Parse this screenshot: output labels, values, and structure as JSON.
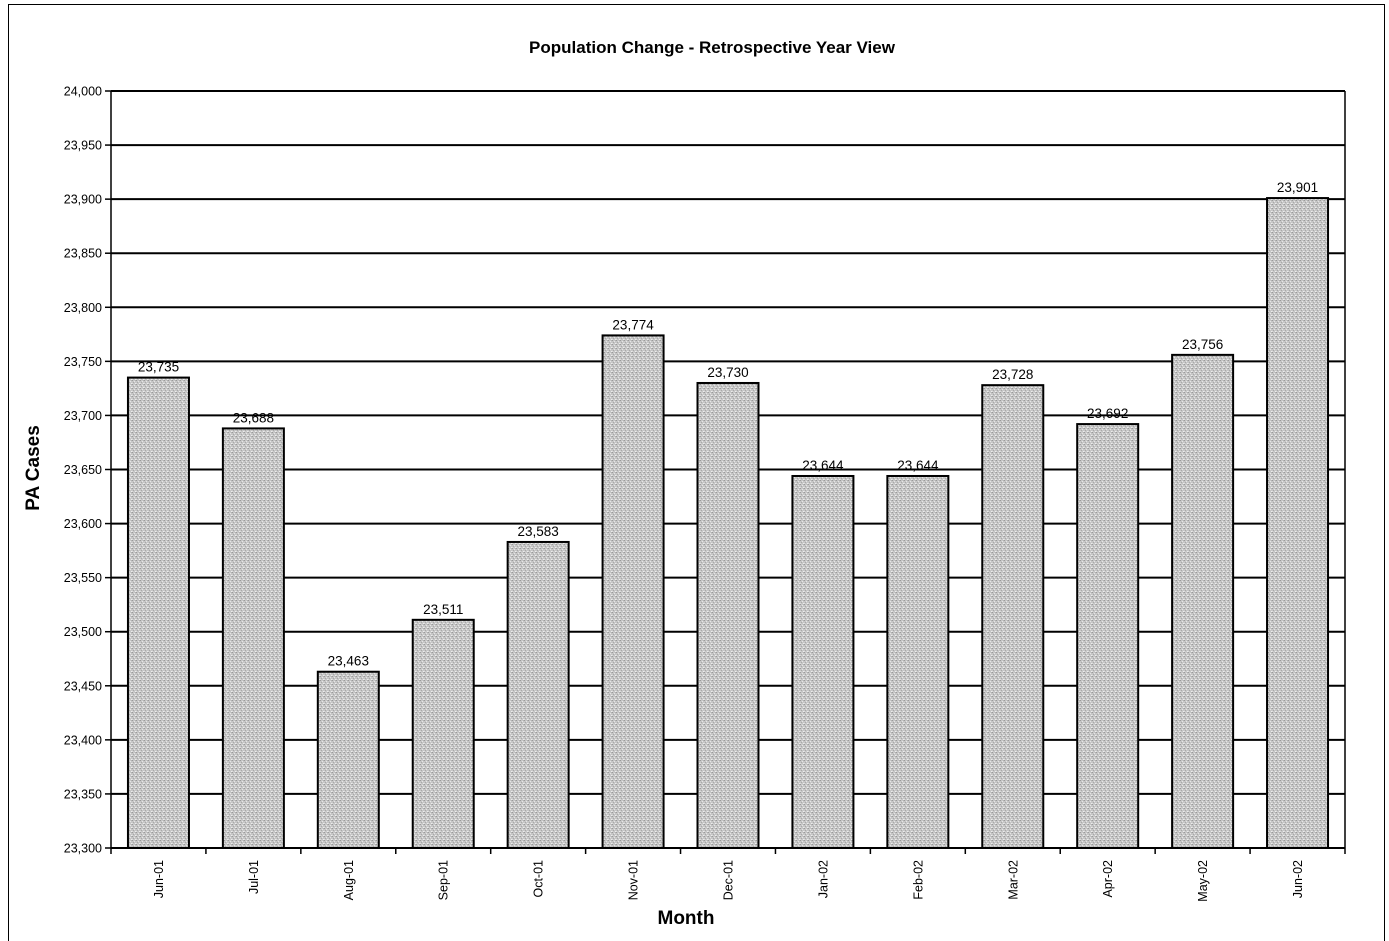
{
  "chart_data": {
    "type": "bar",
    "title": "Population Change - Retrospective Year View",
    "xlabel": "Month",
    "ylabel": "PA Cases",
    "categories": [
      "Jun-01",
      "Jul-01",
      "Aug-01",
      "Sep-01",
      "Oct-01",
      "Nov-01",
      "Dec-01",
      "Jan-02",
      "Feb-02",
      "Mar-02",
      "Apr-02",
      "May-02",
      "Jun-02"
    ],
    "values": [
      23735,
      23688,
      23463,
      23511,
      23583,
      23774,
      23730,
      23644,
      23644,
      23728,
      23692,
      23756,
      23901
    ],
    "data_labels": [
      "23,735",
      "23,688",
      "23,463",
      "23,511",
      "23,583",
      "23,774",
      "23,730",
      "23,644",
      "23,644",
      "23,728",
      "23,692",
      "23,756",
      "23,901"
    ],
    "ylim": [
      23300,
      24000
    ],
    "y_ticks": [
      23300,
      23350,
      23400,
      23450,
      23500,
      23550,
      23600,
      23650,
      23700,
      23750,
      23800,
      23850,
      23900,
      23950,
      24000
    ],
    "y_tick_labels": [
      "23,300",
      "23,350",
      "23,400",
      "23,450",
      "23,500",
      "23,550",
      "23,600",
      "23,650",
      "23,700",
      "23,750",
      "23,800",
      "23,850",
      "23,900",
      "23,950",
      "24,000"
    ],
    "grid": true,
    "legend": "none",
    "colors": {
      "bar_fill": "#c4c4c4",
      "bar_stroke": "#000000",
      "gridline": "#000000"
    }
  }
}
